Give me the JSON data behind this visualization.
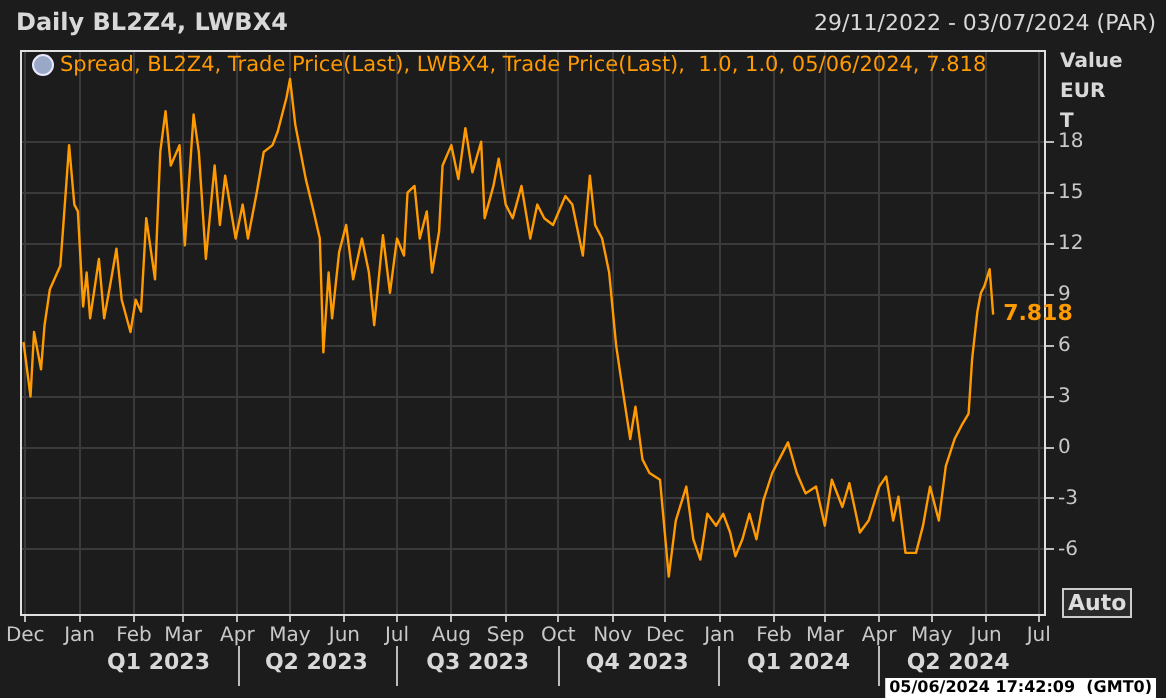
{
  "chart_data": {
    "type": "line",
    "title": "Daily BL2Z4, LWBX4",
    "subtitle": "29/11/2022 - 03/07/2024 (PAR)",
    "ylabel": "Value EUR T",
    "x": [
      "2022-11-30",
      "2022-12-04",
      "2022-12-06",
      "2022-12-10",
      "2022-12-12",
      "2022-12-15",
      "2022-12-21",
      "2022-12-23",
      "2022-12-26",
      "2022-12-29",
      "2022-12-31",
      "2023-01-03",
      "2023-01-05",
      "2023-01-07",
      "2023-01-12",
      "2023-01-15",
      "2023-01-19",
      "2023-01-22",
      "2023-01-25",
      "2023-01-30",
      "2023-02-02",
      "2023-02-05",
      "2023-02-08",
      "2023-02-13",
      "2023-02-16",
      "2023-02-19",
      "2023-02-22",
      "2023-02-27",
      "2023-03-02",
      "2023-03-07",
      "2023-03-10",
      "2023-03-14",
      "2023-03-19",
      "2023-03-22",
      "2023-03-25",
      "2023-03-31",
      "2023-04-04",
      "2023-04-07",
      "2023-04-12",
      "2023-04-16",
      "2023-04-21",
      "2023-04-24",
      "2023-04-29",
      "2023-05-01",
      "2023-05-04",
      "2023-05-10",
      "2023-05-14",
      "2023-05-18",
      "2023-05-20",
      "2023-05-23",
      "2023-05-25",
      "2023-05-29",
      "2023-06-02",
      "2023-06-06",
      "2023-06-11",
      "2023-06-15",
      "2023-06-18",
      "2023-06-23",
      "2023-06-27",
      "2023-07-01",
      "2023-07-05",
      "2023-07-07",
      "2023-07-11",
      "2023-07-14",
      "2023-07-18",
      "2023-07-21",
      "2023-07-25",
      "2023-07-27",
      "2023-08-01",
      "2023-08-05",
      "2023-08-09",
      "2023-08-13",
      "2023-08-18",
      "2023-08-20",
      "2023-08-25",
      "2023-08-28",
      "2023-09-01",
      "2023-09-05",
      "2023-09-10",
      "2023-09-15",
      "2023-09-19",
      "2023-09-23",
      "2023-09-28",
      "2023-10-05",
      "2023-10-09",
      "2023-10-15",
      "2023-10-19",
      "2023-10-22",
      "2023-10-26",
      "2023-10-30",
      "2023-11-03",
      "2023-11-07",
      "2023-11-11",
      "2023-11-14",
      "2023-11-18",
      "2023-11-22",
      "2023-11-28",
      "2023-12-03",
      "2023-12-07",
      "2023-12-13",
      "2023-12-17",
      "2023-12-21",
      "2023-12-25",
      "2023-12-30",
      "2024-01-03",
      "2024-01-07",
      "2024-01-10",
      "2024-01-14",
      "2024-01-18",
      "2024-01-22",
      "2024-01-26",
      "2024-01-31",
      "2024-02-04",
      "2024-02-09",
      "2024-02-14",
      "2024-02-19",
      "2024-02-25",
      "2024-03-01",
      "2024-03-05",
      "2024-03-11",
      "2024-03-15",
      "2024-03-21",
      "2024-03-26",
      "2024-04-01",
      "2024-04-05",
      "2024-04-09",
      "2024-04-12",
      "2024-04-16",
      "2024-04-22",
      "2024-04-26",
      "2024-04-30",
      "2024-05-05",
      "2024-05-09",
      "2024-05-14",
      "2024-05-18",
      "2024-05-22",
      "2024-05-24",
      "2024-05-27",
      "2024-05-29",
      "2024-05-31",
      "2024-06-03",
      "2024-06-05"
    ],
    "series": [
      {
        "name": "Spread, BL2Z4, Trade Price(Last), LWBX4, Trade Price(Last),  1.0, 1.0, 05/06/2024, 7.818",
        "color": "#ff9a00",
        "values": [
          6.2,
          3.0,
          6.8,
          4.6,
          7.2,
          9.3,
          10.7,
          13.5,
          17.8,
          14.3,
          13.9,
          8.3,
          10.3,
          7.6,
          11.1,
          7.6,
          9.9,
          11.7,
          8.7,
          6.8,
          8.7,
          8.0,
          13.5,
          9.9,
          17.4,
          19.8,
          16.6,
          17.8,
          11.9,
          19.6,
          17.4,
          11.1,
          16.6,
          13.1,
          16.0,
          12.3,
          14.3,
          12.3,
          15.0,
          17.4,
          17.8,
          18.6,
          20.6,
          21.7,
          19.0,
          15.8,
          14.1,
          12.3,
          5.6,
          10.3,
          7.6,
          11.5,
          13.1,
          9.9,
          12.3,
          10.3,
          7.2,
          12.5,
          9.1,
          12.3,
          11.3,
          15.0,
          15.4,
          12.3,
          13.9,
          10.3,
          12.7,
          16.6,
          17.8,
          15.8,
          18.8,
          16.2,
          18.0,
          13.5,
          15.4,
          17.0,
          14.3,
          13.5,
          15.4,
          12.3,
          14.3,
          13.5,
          13.1,
          14.8,
          14.3,
          11.3,
          16.0,
          13.1,
          12.3,
          10.3,
          6.0,
          3.2,
          0.5,
          2.4,
          -0.7,
          -1.5,
          -1.9,
          -7.6,
          -4.3,
          -2.3,
          -5.4,
          -6.6,
          -3.9,
          -4.6,
          -3.9,
          -5.0,
          -6.4,
          -5.4,
          -3.9,
          -5.4,
          -3.1,
          -1.5,
          -0.7,
          0.3,
          -1.5,
          -2.7,
          -2.3,
          -4.6,
          -1.9,
          -3.5,
          -2.1,
          -5.0,
          -4.3,
          -2.3,
          -1.7,
          -4.3,
          -2.9,
          -6.2,
          -6.2,
          -4.6,
          -2.3,
          -4.3,
          -1.1,
          0.5,
          1.3,
          2.0,
          5.2,
          8.0,
          9.1,
          9.5,
          10.5,
          7.818
        ],
        "value_labels": [
          null,
          null,
          null,
          null,
          null,
          null,
          null,
          null,
          null,
          null,
          null,
          null,
          null,
          null,
          null,
          null,
          null,
          null,
          null,
          null,
          null,
          null,
          null,
          null,
          null,
          null,
          null,
          null,
          null,
          null,
          null,
          null,
          null,
          null,
          null,
          null,
          null,
          null,
          null,
          null,
          null,
          null,
          null,
          null,
          null,
          null,
          null,
          null,
          null,
          null,
          null,
          null,
          null,
          null,
          null,
          null,
          null,
          null,
          null,
          null,
          null,
          null,
          null,
          null,
          null,
          null,
          null,
          null,
          null,
          null,
          null,
          null,
          null,
          null,
          null,
          null,
          null,
          null,
          null,
          null,
          null,
          null,
          null,
          null,
          null,
          null,
          null,
          null,
          null,
          null,
          null,
          null,
          null,
          null,
          null,
          null,
          null,
          null,
          null,
          null,
          null,
          null,
          null,
          null,
          null,
          null,
          null,
          null,
          null,
          null,
          null,
          null,
          null,
          null,
          null,
          null,
          null,
          null,
          null,
          null,
          null,
          null,
          null,
          null,
          null,
          null,
          null,
          null,
          null,
          null,
          null,
          null,
          null,
          null,
          null,
          null,
          null,
          null,
          null,
          null,
          null,
          "7.818"
        ]
      }
    ],
    "xlim": [
      "2022-11-28",
      "2024-07-04"
    ],
    "xticks": [
      {
        "value": "2022-12-01",
        "label": "Dec"
      },
      {
        "value": "2023-01-01",
        "label": "Jan"
      },
      {
        "value": "2023-02-01",
        "label": "Feb"
      },
      {
        "value": "2023-03-01",
        "label": "Mar"
      },
      {
        "value": "2023-04-01",
        "label": "Apr"
      },
      {
        "value": "2023-05-01",
        "label": "May"
      },
      {
        "value": "2023-06-01",
        "label": "Jun"
      },
      {
        "value": "2023-07-01",
        "label": "Jul"
      },
      {
        "value": "2023-08-01",
        "label": "Aug"
      },
      {
        "value": "2023-09-01",
        "label": "Sep"
      },
      {
        "value": "2023-10-01",
        "label": "Oct"
      },
      {
        "value": "2023-11-01",
        "label": "Nov"
      },
      {
        "value": "2023-12-01",
        "label": "Dec"
      },
      {
        "value": "2024-01-01",
        "label": "Jan"
      },
      {
        "value": "2024-02-01",
        "label": "Feb"
      },
      {
        "value": "2024-03-01",
        "label": "Mar"
      },
      {
        "value": "2024-04-01",
        "label": "Apr"
      },
      {
        "value": "2024-05-01",
        "label": "May"
      },
      {
        "value": "2024-06-01",
        "label": "Jun"
      },
      {
        "value": "2024-07-01",
        "label": "Jul"
      }
    ],
    "x2lim": [
      "2022-11-28",
      "2024-07-04"
    ],
    "x2ticks": [
      {
        "value": "2023-02-15",
        "label": "Q1 2023"
      },
      {
        "value": "2023-05-16",
        "label": "Q2 2023"
      },
      {
        "value": "2023-08-16",
        "label": "Q3 2023"
      },
      {
        "value": "2023-11-15",
        "label": "Q4 2023"
      },
      {
        "value": "2024-02-15",
        "label": "Q1 2024"
      },
      {
        "value": "2024-05-16",
        "label": "Q2 2024"
      }
    ],
    "ylim": [
      -9.8,
      23.4
    ],
    "yticks": [
      -6,
      -3,
      0,
      3,
      6,
      9,
      12,
      15,
      18
    ],
    "grid": true,
    "legend": "top left",
    "marker": "none",
    "annotations": [
      "05/06/2024 17:42:09  (GMT0)",
      "Auto"
    ]
  }
}
